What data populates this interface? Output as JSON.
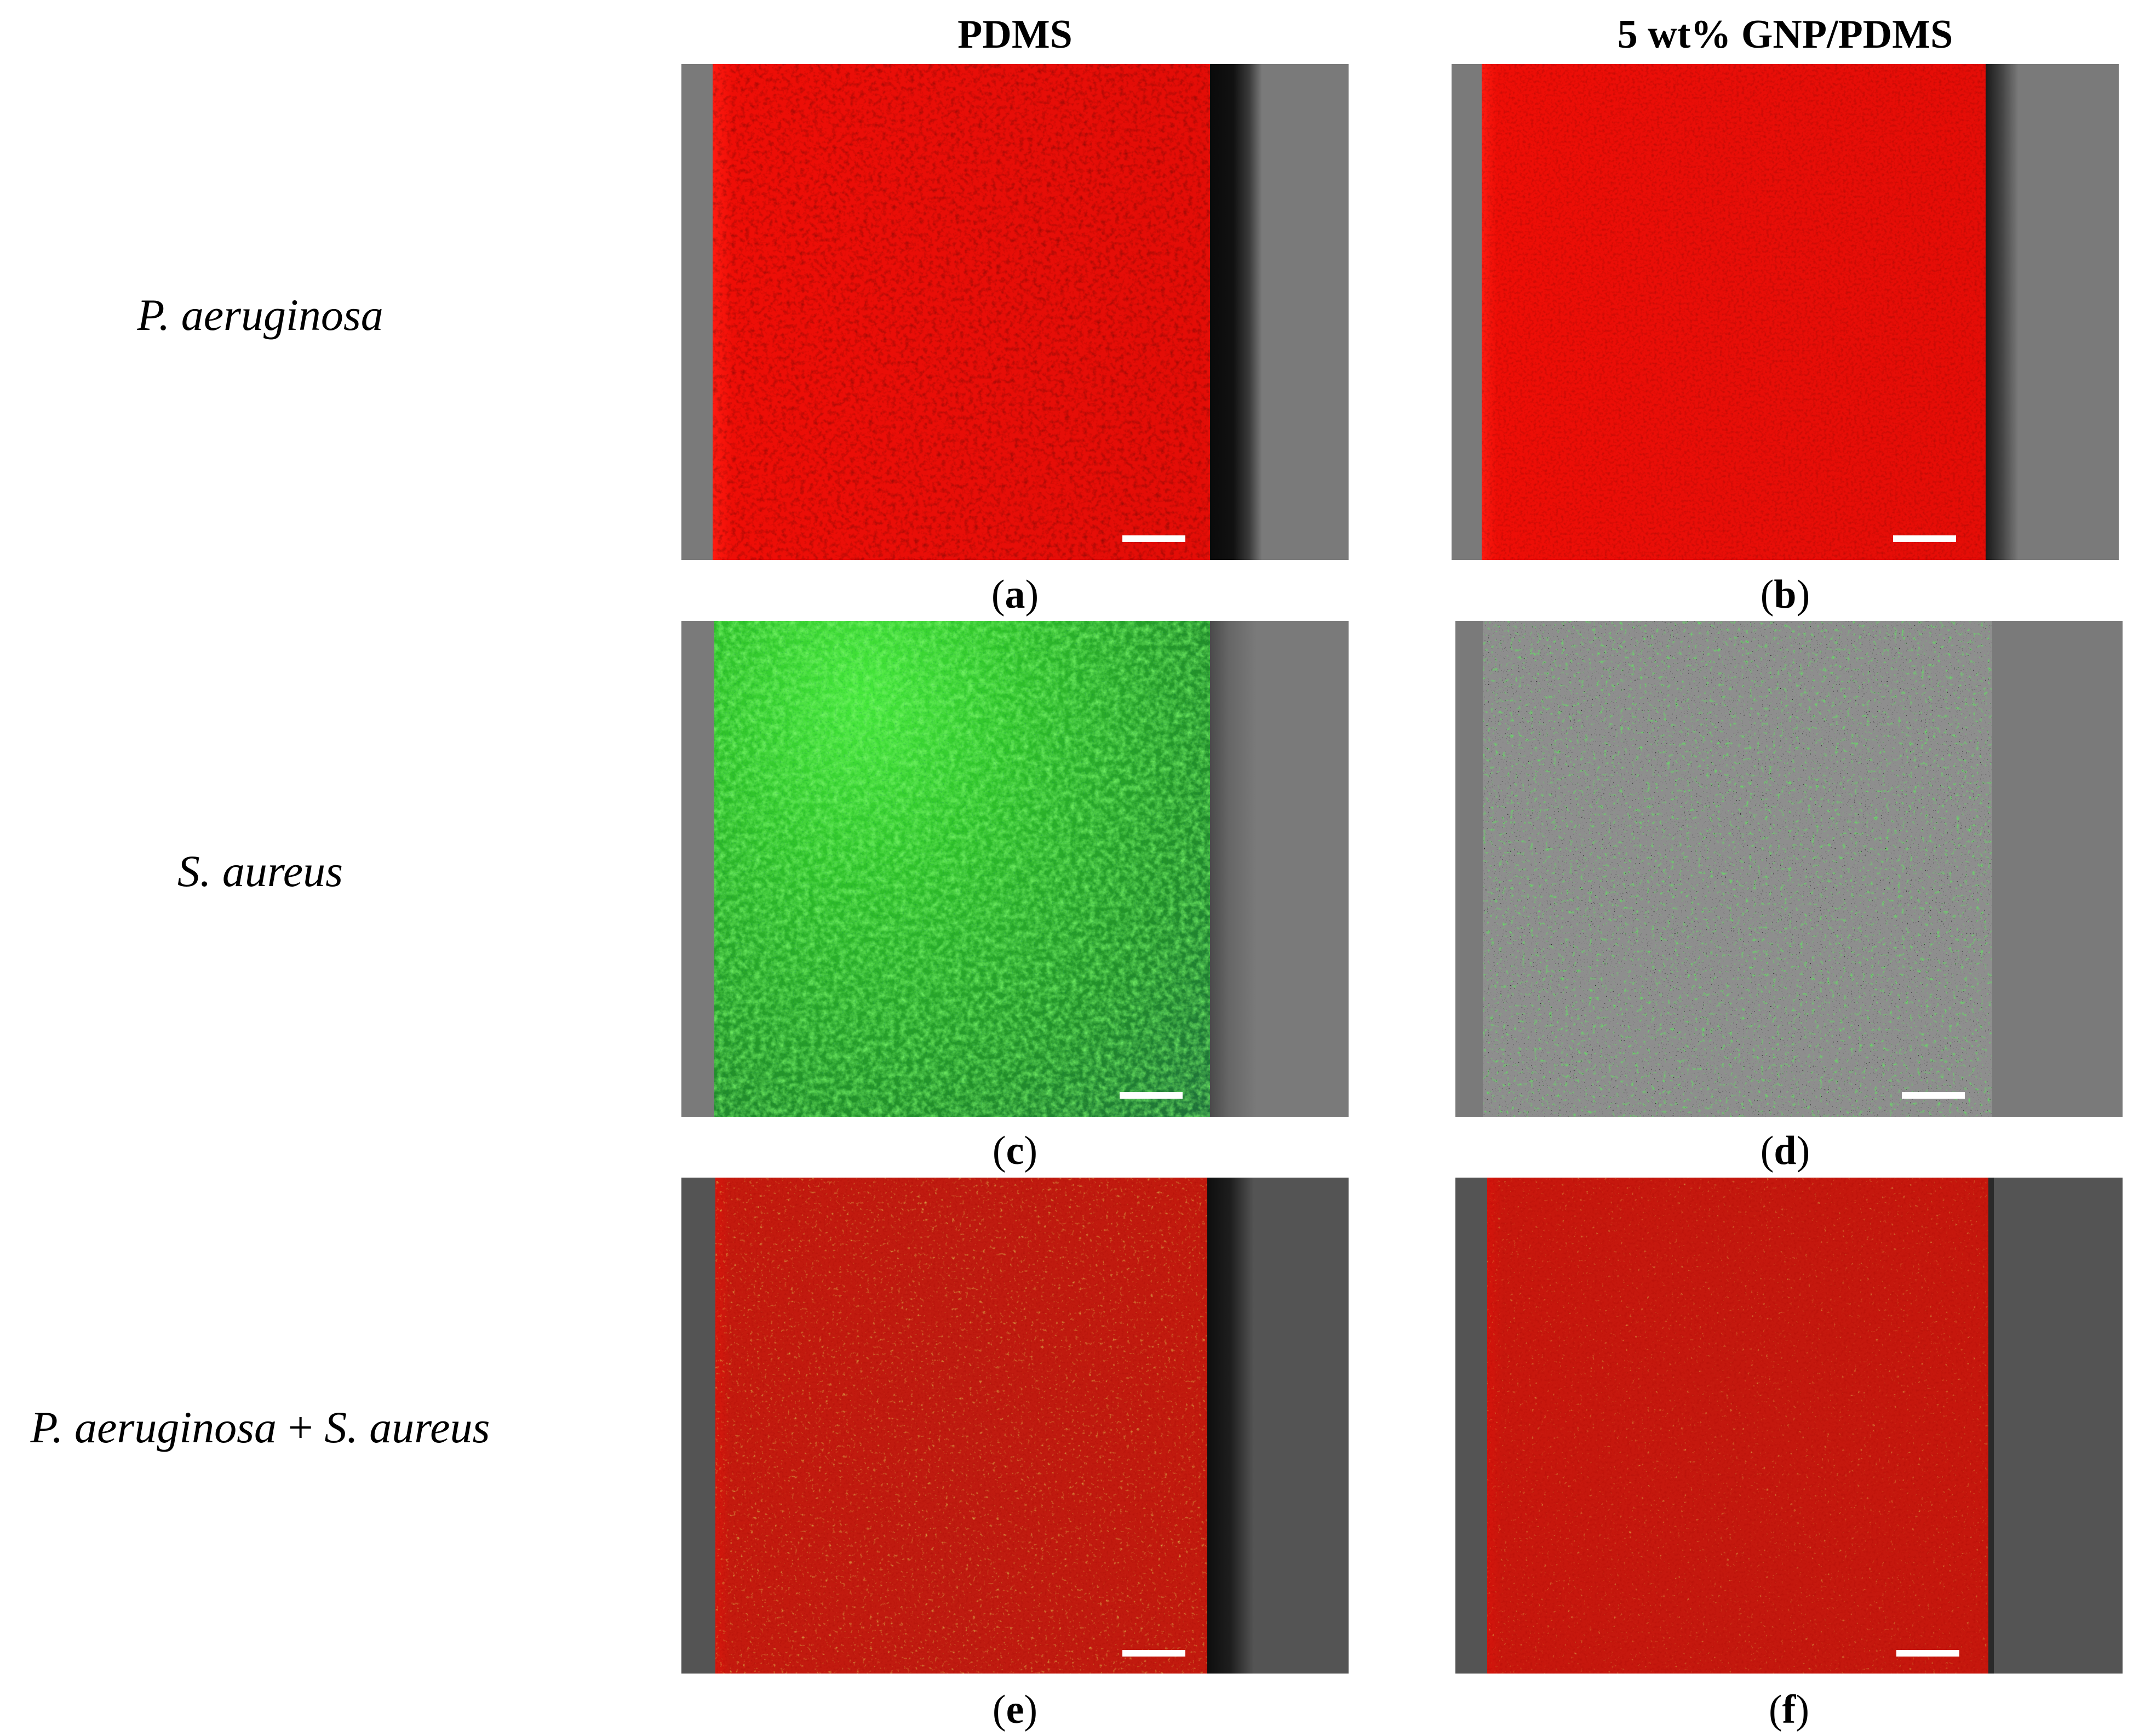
{
  "columns": [
    "PDMS",
    "5 wt% GNP/PDMS"
  ],
  "rows": [
    {
      "name": "P. aeruginosa",
      "parts": [
        "P. aeruginosa"
      ]
    },
    {
      "name": "S. aureus",
      "parts": [
        "S. aureus"
      ]
    },
    {
      "name": "P. aeruginosa + S. aureus",
      "parts": [
        "P. aeruginosa",
        "+",
        "S. aureus"
      ]
    }
  ],
  "panels": [
    {
      "letter": "a",
      "fill": "red"
    },
    {
      "letter": "b",
      "fill": "red"
    },
    {
      "letter": "c",
      "fill": "green"
    },
    {
      "letter": "d",
      "fill": "green-sparse"
    },
    {
      "letter": "e",
      "fill": "red-yellow"
    },
    {
      "letter": "f",
      "fill": "red-yellow"
    }
  ],
  "colors": {
    "red_stain": "#f20d06",
    "green_stain": "#2fb52a",
    "background_gray": "#7a7a7a",
    "dark_gray": "#545454",
    "scale_bar": "#ffffff"
  }
}
